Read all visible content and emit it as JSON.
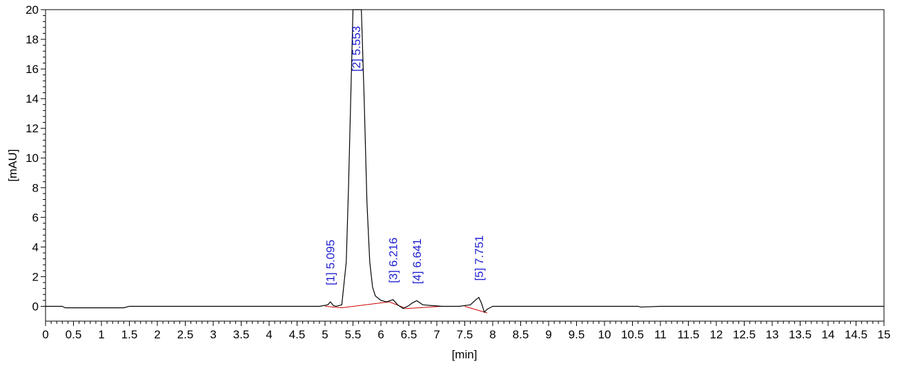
{
  "chart_data": {
    "type": "line",
    "title": "",
    "xlabel": "[min]",
    "ylabel": "[mAU]",
    "xlim": [
      0,
      15
    ],
    "ylim": [
      -1,
      20
    ],
    "x_ticks": [
      0,
      0.5,
      1,
      1.5,
      2,
      2.5,
      3,
      3.5,
      4,
      4.5,
      5,
      5.5,
      6,
      6.5,
      7,
      7.5,
      8,
      8.5,
      9,
      9.5,
      10,
      10.5,
      11,
      11.5,
      12,
      12.5,
      13,
      13.5,
      14,
      14.5,
      15
    ],
    "x_tick_labels": [
      "0",
      "0.5",
      "1",
      "1.5",
      "2",
      "2.5",
      "3",
      "3.5",
      "4",
      "4.5",
      "5",
      "5.5",
      "6",
      "6.5",
      "7",
      "7.5",
      "8",
      "8.5",
      "9",
      "9.5",
      "10",
      "10.5",
      "11",
      "11.5",
      "12",
      "12.5",
      "13",
      "13.5",
      "14",
      "14.5",
      "15"
    ],
    "y_ticks": [
      0,
      2,
      4,
      6,
      8,
      10,
      12,
      14,
      16,
      18,
      20
    ],
    "y_tick_labels": [
      "0",
      "2",
      "4",
      "6",
      "8",
      "10",
      "12",
      "14",
      "16",
      "18",
      "20"
    ],
    "grid": false,
    "colors": {
      "trace": "#000000",
      "baseline": "#cc0000",
      "peak_label": "#1f1fd0"
    },
    "series": [
      {
        "x": [
          0,
          0.3,
          0.35,
          0.4,
          1.4,
          1.5,
          4.9,
          5.05,
          5.095,
          5.15,
          5.2,
          5.3,
          5.38,
          5.42,
          5.46,
          5.5,
          5.553,
          5.6,
          5.65,
          5.7,
          5.75,
          5.8,
          5.85,
          5.9,
          6.0,
          6.1,
          6.216,
          6.3,
          6.4,
          6.5,
          6.55,
          6.641,
          6.75,
          6.9,
          7.1,
          7.4,
          7.6,
          7.7,
          7.751,
          7.8,
          7.85,
          7.9,
          8.0,
          8.5,
          10.6,
          10.65,
          11,
          15
        ],
        "y": [
          0,
          0,
          -0.1,
          -0.1,
          -0.1,
          0,
          0,
          0.1,
          0.3,
          0.05,
          0,
          0.1,
          3,
          8,
          14,
          20,
          20,
          20,
          20,
          14,
          7,
          3,
          1.3,
          0.7,
          0.4,
          0.3,
          0.45,
          0.1,
          -0.15,
          0.05,
          0.2,
          0.38,
          0.1,
          0.05,
          0,
          0,
          0.1,
          0.45,
          0.6,
          0.2,
          -0.4,
          -0.2,
          0,
          0,
          0,
          -0.05,
          0,
          0
        ]
      }
    ],
    "baselines": [
      {
        "x": [
          5.0,
          5.3
        ],
        "y": [
          0,
          -0.1
        ]
      },
      {
        "x": [
          5.3,
          6.15
        ],
        "y": [
          -0.1,
          0.3
        ]
      },
      {
        "x": [
          6.15,
          6.45
        ],
        "y": [
          0.3,
          -0.15
        ]
      },
      {
        "x": [
          6.45,
          7.1
        ],
        "y": [
          -0.15,
          0
        ]
      },
      {
        "x": [
          7.5,
          7.9
        ],
        "y": [
          0,
          -0.45
        ]
      }
    ],
    "peaks": [
      {
        "label": "[1]  5.095",
        "rt": 5.095,
        "y": 0.3
      },
      {
        "label": "[2]  5.553",
        "rt": 5.553,
        "y": 20
      },
      {
        "label": "[3]  6.216",
        "rt": 6.216,
        "y": 0.45
      },
      {
        "label": "[4]  6.641",
        "rt": 6.641,
        "y": 0.38
      },
      {
        "label": "[5]  7.751",
        "rt": 7.751,
        "y": 0.6
      }
    ]
  }
}
